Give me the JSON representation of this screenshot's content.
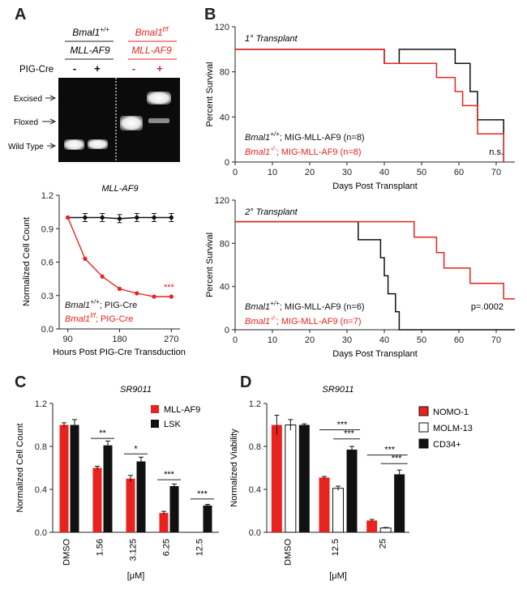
{
  "colors": {
    "red": "#e8231f",
    "black": "#111111",
    "white": "#ffffff"
  },
  "panel_A": {
    "label": "A",
    "gel": {
      "group1": {
        "gene": "Bmal1",
        "sup": "+/+",
        "sub": "MLL-AF9"
      },
      "group2": {
        "gene": "Bmal1",
        "sup": "f/f",
        "sub": "MLL-AF9"
      },
      "row_label": "PIG-Cre",
      "signs": [
        "-",
        "+",
        "-",
        "+"
      ],
      "band_labels": [
        "Excised",
        "Floxed",
        "Wild Type"
      ]
    }
  },
  "panel_B": {
    "label": "B"
  },
  "panel_C": {
    "label": "C"
  },
  "panel_D": {
    "label": "D"
  },
  "chart_data": [
    {
      "id": "A-line",
      "type": "line",
      "title": "MLL-AF9",
      "xlabel": "Hours Post PIG-Cre Transduction",
      "ylabel": "Normalized Cell Count",
      "xlim": [
        75,
        285
      ],
      "ylim": [
        0,
        1.2
      ],
      "xticks": [
        "90",
        "180",
        "270"
      ],
      "xtick_values": [
        90,
        180,
        270
      ],
      "yticks": [
        "0.0",
        "0.3",
        "0.6",
        "0.9",
        "1.2"
      ],
      "ytick_values": [
        0,
        0.3,
        0.6,
        0.9,
        1.2
      ],
      "legend": [
        {
          "gene": "Bmal1",
          "sup": "+/+",
          "rest": "; PIG-Cre"
        },
        {
          "gene": "Bmal1",
          "sup": "f/f",
          "rest": "; PIG-Cre"
        }
      ],
      "annotation": "***",
      "series": [
        {
          "name": "Bmal1+/+; PIG-Cre",
          "color": "#111111",
          "x": [
            90,
            120,
            150,
            180,
            210,
            240,
            270
          ],
          "y": [
            1.0,
            1.0,
            1.0,
            0.99,
            1.0,
            1.0,
            1.0
          ]
        },
        {
          "name": "Bmal1f/f; PIG-Cre",
          "color": "#e8231f",
          "x": [
            90,
            120,
            150,
            180,
            210,
            240,
            270
          ],
          "y": [
            1.0,
            0.63,
            0.47,
            0.36,
            0.32,
            0.29,
            0.29
          ]
        }
      ]
    },
    {
      "id": "B-top",
      "type": "line",
      "subtitle": "1° Transplant",
      "xlabel": "Days Post Transplant",
      "ylabel": "Percent Survival",
      "xlim": [
        0,
        75
      ],
      "ylim": [
        0,
        120
      ],
      "xticks": [
        "0",
        "10",
        "20",
        "30",
        "40",
        "50",
        "60",
        "70"
      ],
      "xtick_values": [
        0,
        10,
        20,
        30,
        40,
        50,
        60,
        70
      ],
      "yticks": [
        "0",
        "40",
        "80",
        "120"
      ],
      "ytick_values": [
        0,
        40,
        80,
        120
      ],
      "legend": [
        {
          "gene": "Bmal1",
          "sup": "+/+",
          "rest": "; MIG-MLL-AF9 (n=8)"
        },
        {
          "gene": "Bmal1",
          "sup": "-/-",
          "rest": "; MIG-MLL-AF9 (n=8)"
        }
      ],
      "annotation": "n.s.",
      "series": [
        {
          "name": "Bmal1+/+",
          "color": "#111111",
          "x": [
            0,
            40,
            40,
            44,
            44,
            59,
            59,
            63,
            63,
            65,
            65,
            72,
            72
          ],
          "y": [
            100,
            100,
            87.5,
            87.5,
            100,
            100,
            87.5,
            87.5,
            62.5,
            62.5,
            37.5,
            37.5,
            0
          ]
        },
        {
          "name": "Bmal1-/-",
          "color": "#e8231f",
          "x": [
            0,
            40,
            40,
            54,
            54,
            59,
            59,
            61,
            61,
            65,
            65,
            70,
            70,
            72,
            72
          ],
          "y": [
            100,
            100,
            87.5,
            87.5,
            75,
            75,
            62.5,
            62.5,
            50,
            50,
            25,
            25,
            25,
            25,
            0
          ]
        }
      ]
    },
    {
      "id": "B-bottom",
      "type": "line",
      "subtitle": "2° Transplant",
      "xlabel": "Days Post Transplant",
      "ylabel": "Percent Survival",
      "xlim": [
        0,
        75
      ],
      "ylim": [
        0,
        120
      ],
      "xticks": [
        "0",
        "10",
        "20",
        "30",
        "40",
        "50",
        "60",
        "70"
      ],
      "xtick_values": [
        0,
        10,
        20,
        30,
        40,
        50,
        60,
        70
      ],
      "yticks": [
        "0",
        "40",
        "80",
        "120"
      ],
      "ytick_values": [
        0,
        40,
        80,
        120
      ],
      "legend": [
        {
          "gene": "Bmal1",
          "sup": "+/+",
          "rest": "; MIG-MLL-AF9 (n=6)"
        },
        {
          "gene": "Bmal1",
          "sup": "-/-",
          "rest": "; MIG-MLL-AF9 (n=7)"
        }
      ],
      "annotation": "p=.0002",
      "series": [
        {
          "name": "Bmal1+/+",
          "color": "#111111",
          "x": [
            0,
            33,
            33,
            39,
            39,
            40,
            40,
            41,
            41,
            43,
            43,
            44,
            44,
            75
          ],
          "y": [
            100,
            100,
            83.3,
            83.3,
            66.7,
            66.7,
            50,
            50,
            33.3,
            33.3,
            16.7,
            16.7,
            0,
            0
          ]
        },
        {
          "name": "Bmal1-/-",
          "color": "#e8231f",
          "x": [
            0,
            48,
            48,
            54,
            54,
            56,
            56,
            63,
            63,
            72,
            72,
            75
          ],
          "y": [
            100,
            100,
            85.7,
            85.7,
            71.4,
            71.4,
            57.1,
            57.1,
            42.9,
            42.9,
            28.6,
            28.6
          ]
        }
      ]
    },
    {
      "id": "C-bar",
      "type": "bar",
      "title": "SR9011",
      "xlabel": "[μM]",
      "ylabel": "Normalized Cell Count",
      "ylim": [
        0,
        1.2
      ],
      "yticks": [
        "0.0",
        "0.4",
        "0.8",
        "1.2"
      ],
      "ytick_values": [
        0,
        0.4,
        0.8,
        1.2
      ],
      "categories": [
        "DMSO",
        "1.56",
        "3.125",
        "6.25",
        "12.5"
      ],
      "series": [
        {
          "name": "MLL-AF9",
          "color": "#e8231f",
          "values": [
            1.0,
            0.6,
            0.5,
            0.18,
            0.0
          ],
          "err": [
            0.02,
            0.015,
            0.03,
            0.015,
            0
          ]
        },
        {
          "name": "LSK",
          "color": "#111111",
          "values": [
            1.0,
            0.81,
            0.66,
            0.43,
            0.25
          ],
          "err": [
            0.05,
            0.04,
            0.04,
            0.02,
            0.01
          ]
        }
      ],
      "significance": [
        {
          "idx": 1,
          "label": "**"
        },
        {
          "idx": 2,
          "label": "*"
        },
        {
          "idx": 3,
          "label": "***"
        },
        {
          "idx": 4,
          "label": "***"
        }
      ]
    },
    {
      "id": "D-bar",
      "type": "bar",
      "title": "SR9011",
      "xlabel": "[μM]",
      "ylabel": "Normalized Viability",
      "ylim": [
        0,
        1.2
      ],
      "yticks": [
        "0.0",
        "0.4",
        "0.8",
        "1.2"
      ],
      "ytick_values": [
        0,
        0.4,
        0.8,
        1.2
      ],
      "categories": [
        "DMSO",
        "12.5",
        "25"
      ],
      "series": [
        {
          "name": "NOMO-1",
          "color": "#e8231f",
          "values": [
            1.0,
            0.51,
            0.11
          ],
          "err": [
            0.09,
            0.01,
            0.01
          ]
        },
        {
          "name": "MOLM-13",
          "color": "#ffffff",
          "values": [
            1.0,
            0.41,
            0.04
          ],
          "err": [
            0.05,
            0.02,
            0.005
          ]
        },
        {
          "name": "CD34+",
          "color": "#111111",
          "values": [
            1.0,
            0.77,
            0.54
          ],
          "err": [
            0.01,
            0.03,
            0.04
          ]
        }
      ],
      "significance": [
        {
          "idx": 1,
          "label": "***",
          "pair": [
            0,
            2
          ]
        },
        {
          "idx": 1,
          "label": "***",
          "pair": [
            1,
            2
          ]
        },
        {
          "idx": 2,
          "label": "***",
          "pair": [
            0,
            2
          ]
        },
        {
          "idx": 2,
          "label": "***",
          "pair": [
            1,
            2
          ]
        }
      ]
    }
  ]
}
